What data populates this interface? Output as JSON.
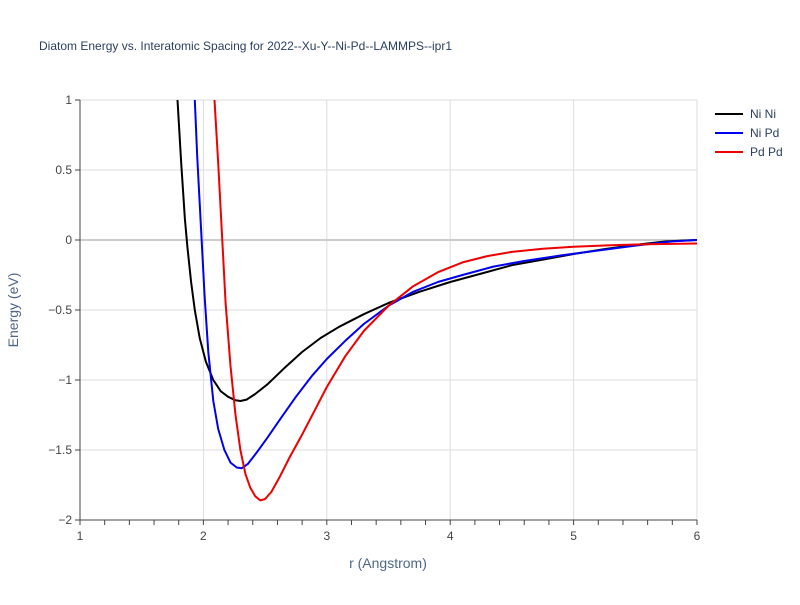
{
  "chart_data": {
    "type": "line",
    "title": "Diatom Energy vs. Interatomic Spacing for 2022--Xu-Y--Ni-Pd--LAMMPS--ipr1",
    "xlabel": "r (Angstrom)",
    "ylabel": "Energy (eV)",
    "xlim": [
      1,
      6
    ],
    "ylim": [
      -2,
      1
    ],
    "xticks": [
      "1",
      "2",
      "3",
      "4",
      "5",
      "6"
    ],
    "yticks": [
      "1",
      "0.5",
      "0",
      "−0.5",
      "−1",
      "−1.5",
      "−2"
    ],
    "grid": true,
    "legend_position": "top-right",
    "series": [
      {
        "name": "Ni Ni",
        "color": "#000000",
        "x": [
          1.79,
          1.82,
          1.85,
          1.87,
          1.9,
          1.93,
          1.97,
          2.02,
          2.08,
          2.14,
          2.2,
          2.26,
          2.3,
          2.35,
          2.42,
          2.52,
          2.65,
          2.8,
          2.95,
          3.1,
          3.3,
          3.5,
          3.75,
          4.0,
          4.25,
          4.5,
          4.75,
          5.0,
          5.25,
          5.5,
          5.75,
          6.0
        ],
        "y": [
          1.0,
          0.55,
          0.15,
          -0.05,
          -0.3,
          -0.5,
          -0.7,
          -0.87,
          -1.0,
          -1.08,
          -1.12,
          -1.145,
          -1.15,
          -1.14,
          -1.1,
          -1.03,
          -0.92,
          -0.8,
          -0.7,
          -0.62,
          -0.53,
          -0.45,
          -0.37,
          -0.3,
          -0.24,
          -0.18,
          -0.14,
          -0.1,
          -0.065,
          -0.035,
          -0.01,
          0.0
        ]
      },
      {
        "name": "Ni Pd",
        "color": "#0000ee",
        "x": [
          1.93,
          1.95,
          1.98,
          2.01,
          2.04,
          2.08,
          2.12,
          2.17,
          2.22,
          2.27,
          2.31,
          2.36,
          2.43,
          2.52,
          2.63,
          2.75,
          2.88,
          3.0,
          3.15,
          3.3,
          3.5,
          3.7,
          3.9,
          4.1,
          4.35,
          4.6,
          4.9,
          5.2,
          5.5,
          5.8,
          6.0
        ],
        "y": [
          1.0,
          0.6,
          0.1,
          -0.4,
          -0.8,
          -1.15,
          -1.35,
          -1.5,
          -1.59,
          -1.625,
          -1.63,
          -1.6,
          -1.52,
          -1.41,
          -1.27,
          -1.12,
          -0.97,
          -0.85,
          -0.72,
          -0.6,
          -0.47,
          -0.37,
          -0.3,
          -0.25,
          -0.19,
          -0.15,
          -0.11,
          -0.075,
          -0.04,
          -0.01,
          0.0
        ]
      },
      {
        "name": "Pd Pd",
        "color": "#ee0000",
        "x": [
          2.09,
          2.12,
          2.15,
          2.18,
          2.22,
          2.26,
          2.3,
          2.34,
          2.38,
          2.42,
          2.46,
          2.5,
          2.55,
          2.62,
          2.7,
          2.8,
          2.9,
          3.0,
          3.15,
          3.3,
          3.5,
          3.7,
          3.9,
          4.1,
          4.3,
          4.5,
          4.75,
          5.0,
          5.3,
          5.6,
          6.0
        ],
        "y": [
          1.0,
          0.55,
          0.05,
          -0.45,
          -0.9,
          -1.25,
          -1.5,
          -1.67,
          -1.77,
          -1.83,
          -1.86,
          -1.85,
          -1.8,
          -1.69,
          -1.55,
          -1.39,
          -1.22,
          -1.05,
          -0.83,
          -0.65,
          -0.47,
          -0.33,
          -0.23,
          -0.16,
          -0.115,
          -0.085,
          -0.062,
          -0.048,
          -0.038,
          -0.03,
          -0.025
        ]
      }
    ]
  }
}
